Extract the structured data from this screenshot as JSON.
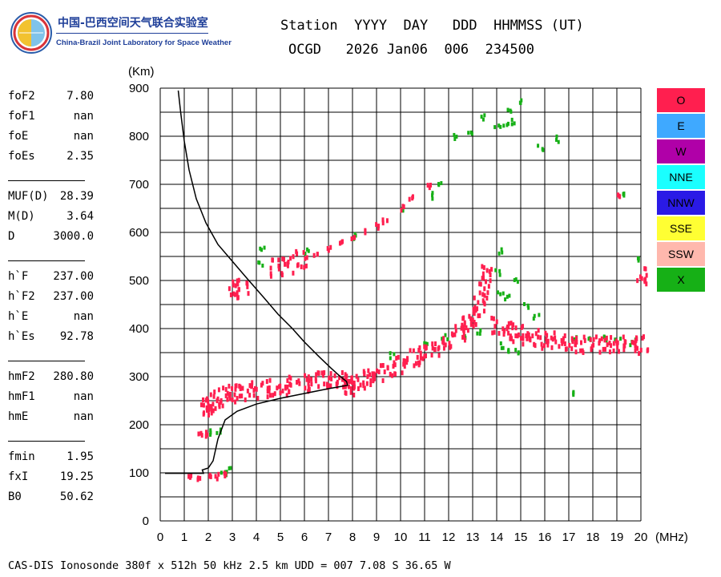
{
  "logo": {
    "cn": "中国-巴西空间天气联合实验室",
    "en": "China-Brazil Joint Laboratory for Space Weather"
  },
  "header": {
    "line1": "Station  YYYY  DAY   DDD  HHMMSS (UT)",
    "line2": "OCGD   2026 Jan06  006  234500"
  },
  "params": {
    "group1": [
      {
        "name": "foF2",
        "value": "7.80"
      },
      {
        "name": "foF1",
        "value": "nan"
      },
      {
        "name": "foE",
        "value": "nan"
      },
      {
        "name": "foEs",
        "value": "2.35"
      }
    ],
    "group2": [
      {
        "name": "MUF(D)",
        "value": "28.39"
      },
      {
        "name": "M(D)",
        "value": "3.64"
      },
      {
        "name": "D",
        "value": "3000.0"
      }
    ],
    "group3": [
      {
        "name": "h`F",
        "value": "237.00"
      },
      {
        "name": "h`F2",
        "value": "237.00"
      },
      {
        "name": "h`E",
        "value": "nan"
      },
      {
        "name": "h`Es",
        "value": "92.78"
      }
    ],
    "group4": [
      {
        "name": "hmF2",
        "value": "280.80"
      },
      {
        "name": "hmF1",
        "value": "nan"
      },
      {
        "name": "hmE",
        "value": "nan"
      }
    ],
    "group5": [
      {
        "name": "fmin",
        "value": "1.95"
      },
      {
        "name": "fxI",
        "value": "19.25"
      },
      {
        "name": "B0",
        "value": "50.62"
      }
    ]
  },
  "legend": [
    {
      "label": "O",
      "color": "#ff1f4f"
    },
    {
      "label": "E",
      "color": "#3fa9ff"
    },
    {
      "label": "W",
      "color": "#b000a8"
    },
    {
      "label": "NNE",
      "color": "#1affff"
    },
    {
      "label": "NNW",
      "color": "#2a1ae6"
    },
    {
      "label": "SSE",
      "color": "#ffff33"
    },
    {
      "label": "SSW",
      "color": "#ffb8ad"
    },
    {
      "label": "X",
      "color": "#16b016"
    }
  ],
  "chart_data": {
    "type": "scatter",
    "title": "",
    "xlabel": "(MHz)",
    "ylabel": "(Km)",
    "xlim": [
      0,
      20
    ],
    "ylim": [
      0,
      900
    ],
    "x_ticks": [
      "0",
      "1",
      "2",
      "3",
      "4",
      "5",
      "6",
      "7",
      "8",
      "9",
      "10",
      "11",
      "12",
      "13",
      "14",
      "15",
      "16",
      "17",
      "18",
      "19",
      "20"
    ],
    "y_ticks": [
      "0",
      "100",
      "200",
      "300",
      "400",
      "500",
      "600",
      "700",
      "800",
      "900"
    ],
    "grid": true,
    "o_trace": [
      [
        1.9,
        240
      ],
      [
        2.0,
        245
      ],
      [
        2.3,
        255
      ],
      [
        2.6,
        265
      ],
      [
        3.0,
        270
      ],
      [
        3.5,
        272
      ],
      [
        4.0,
        276
      ],
      [
        4.5,
        280
      ],
      [
        5.0,
        283
      ],
      [
        5.5,
        286
      ],
      [
        6.0,
        290
      ],
      [
        6.5,
        295
      ],
      [
        7.0,
        300
      ],
      [
        7.5,
        296
      ],
      [
        7.8,
        285
      ],
      [
        7.8,
        292
      ],
      [
        8.2,
        298
      ],
      [
        8.6,
        305
      ],
      [
        9.0,
        312
      ],
      [
        9.5,
        320
      ],
      [
        10.0,
        330
      ],
      [
        10.5,
        342
      ],
      [
        11.0,
        355
      ],
      [
        11.5,
        365
      ],
      [
        12.0,
        378
      ],
      [
        12.5,
        395
      ],
      [
        12.8,
        410
      ],
      [
        13.0,
        428
      ],
      [
        13.2,
        452
      ],
      [
        13.4,
        485
      ],
      [
        13.6,
        520
      ],
      [
        14.0,
        410
      ],
      [
        14.4,
        400
      ],
      [
        14.8,
        395
      ],
      [
        15.2,
        390
      ],
      [
        15.6,
        385
      ],
      [
        16.0,
        380
      ],
      [
        16.5,
        378
      ],
      [
        17.0,
        375
      ],
      [
        17.5,
        372
      ],
      [
        18.0,
        372
      ],
      [
        18.5,
        370
      ],
      [
        19.0,
        372
      ],
      [
        19.5,
        370
      ],
      [
        20.0,
        370
      ],
      [
        1.6,
        185
      ],
      [
        1.9,
        185
      ],
      [
        1.2,
        95
      ],
      [
        1.6,
        95
      ],
      [
        2.0,
        95
      ],
      [
        2.3,
        97
      ],
      [
        2.6,
        100
      ],
      [
        3.0,
        485
      ],
      [
        3.4,
        488
      ],
      [
        4.8,
        530
      ],
      [
        5.3,
        538
      ],
      [
        5.8,
        548
      ],
      [
        6.4,
        562
      ],
      [
        7.0,
        572
      ],
      [
        7.5,
        582
      ],
      [
        8.0,
        593
      ],
      [
        8.5,
        605
      ],
      [
        9.0,
        618
      ],
      [
        9.3,
        628
      ],
      [
        10.0,
        655
      ],
      [
        10.4,
        675
      ],
      [
        11.1,
        700
      ],
      [
        19.0,
        678
      ],
      [
        20.0,
        512
      ]
    ],
    "x_trace": [
      [
        2.0,
        190
      ],
      [
        2.4,
        192
      ],
      [
        2.8,
        110
      ],
      [
        2.6,
        104
      ],
      [
        4.1,
        540
      ],
      [
        4.2,
        568
      ],
      [
        6.0,
        565
      ],
      [
        8.0,
        595
      ],
      [
        10.0,
        648
      ],
      [
        11.3,
        680
      ],
      [
        11.6,
        700
      ],
      [
        12.2,
        803
      ],
      [
        12.9,
        812
      ],
      [
        13.4,
        845
      ],
      [
        14.0,
        825
      ],
      [
        14.3,
        830
      ],
      [
        14.5,
        860
      ],
      [
        14.7,
        835
      ],
      [
        15.0,
        878
      ],
      [
        15.8,
        782
      ],
      [
        16.5,
        797
      ],
      [
        17.1,
        272
      ],
      [
        19.2,
        680
      ],
      [
        19.9,
        548
      ],
      [
        14.1,
        480
      ],
      [
        14.4,
        470
      ],
      [
        14.8,
        500
      ],
      [
        15.2,
        450
      ],
      [
        15.6,
        430
      ],
      [
        14.2,
        370
      ],
      [
        14.5,
        360
      ],
      [
        14.8,
        355
      ],
      [
        17.2,
        380
      ],
      [
        17.8,
        382
      ],
      [
        18.4,
        385
      ],
      [
        19.0,
        380
      ],
      [
        19.6,
        375
      ],
      [
        13.2,
        400
      ],
      [
        12.6,
        390
      ],
      [
        11.8,
        385
      ],
      [
        11.0,
        378
      ],
      [
        9.6,
        348
      ],
      [
        14.1,
        565
      ],
      [
        14.0,
        520
      ]
    ],
    "profile": [
      [
        0.75,
        895
      ],
      [
        0.85,
        850
      ],
      [
        1.0,
        790
      ],
      [
        1.2,
        730
      ],
      [
        1.5,
        670
      ],
      [
        1.9,
        620
      ],
      [
        2.4,
        575
      ],
      [
        3.0,
        540
      ],
      [
        3.6,
        505
      ],
      [
        4.3,
        465
      ],
      [
        4.9,
        430
      ],
      [
        5.5,
        400
      ],
      [
        6.0,
        372
      ],
      [
        6.6,
        342
      ],
      [
        7.1,
        318
      ],
      [
        7.5,
        300
      ],
      [
        7.75,
        290
      ],
      [
        7.8,
        282
      ],
      [
        7.0,
        275
      ],
      [
        6.0,
        265
      ],
      [
        5.0,
        255
      ],
      [
        4.0,
        243
      ],
      [
        3.2,
        228
      ],
      [
        2.7,
        210
      ],
      [
        2.4,
        170
      ],
      [
        2.2,
        125
      ],
      [
        2.0,
        110
      ],
      [
        1.75,
        106
      ],
      [
        1.8,
        99
      ],
      [
        1.5,
        99
      ],
      [
        1.0,
        99
      ],
      [
        0.6,
        99
      ],
      [
        0.2,
        99
      ]
    ]
  },
  "footer": "CAS-DIS Ionosonde 380f x 512h 50 kHz 2.5 km UDD = 007 7.08 S 36.65 W"
}
